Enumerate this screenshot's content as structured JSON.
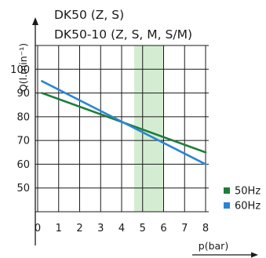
{
  "chart_data": {
    "type": "line",
    "title_lines": [
      "DK50 (Z, S)",
      "DK50-10 (Z, S, M, S/M)"
    ],
    "xlabel": "p(bar)",
    "ylabel": "Q(l.min⁻¹)",
    "xlim": [
      0,
      8
    ],
    "ylim": [
      40,
      110
    ],
    "x_ticks": [
      "0",
      "1",
      "2",
      "3",
      "4",
      "5",
      "6",
      "7",
      "8"
    ],
    "y_ticks": [
      "50",
      "60",
      "70",
      "80",
      "90",
      "100"
    ],
    "grid": true,
    "highlight_band": {
      "x": [
        4.6,
        6.0
      ],
      "color": "#d4edd2"
    },
    "legend_position": "bottom-right",
    "series": [
      {
        "name": "50Hz",
        "color": "#1e7d3b",
        "x": [
          0.2,
          8
        ],
        "y": [
          90,
          65
        ]
      },
      {
        "name": "60Hz",
        "color": "#2a86d4",
        "x": [
          0.2,
          8
        ],
        "y": [
          95,
          60
        ]
      }
    ]
  }
}
